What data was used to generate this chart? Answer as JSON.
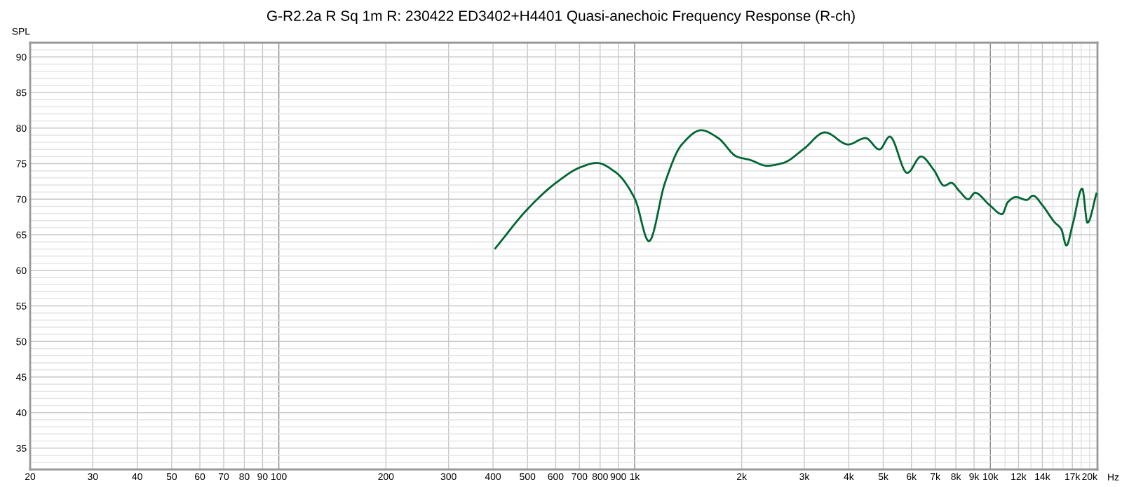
{
  "chart_data": {
    "type": "line",
    "title": "G-R2.2a R Sq 1m R: 230422 ED3402+H4401 Quasi-anechoic Frequency Response (R-ch)",
    "ylabel": "SPL",
    "xlabel": "Hz",
    "log": "x",
    "grid": true,
    "marker": "none",
    "line_style": "solid",
    "xlim": [
      20,
      20000
    ],
    "ylim": [
      32,
      92
    ],
    "xticks": [
      20,
      30,
      40,
      50,
      60,
      70,
      80,
      90,
      100,
      200,
      300,
      400,
      500,
      600,
      700,
      800,
      900,
      {
        "value": 1000,
        "label": "1k"
      },
      {
        "value": 2000,
        "label": "2k"
      },
      {
        "value": 3000,
        "label": "3k"
      },
      {
        "value": 4000,
        "label": "4k"
      },
      {
        "value": 5000,
        "label": "5k"
      },
      {
        "value": 6000,
        "label": "6k"
      },
      {
        "value": 7000,
        "label": "7k"
      },
      {
        "value": 8000,
        "label": "8k"
      },
      {
        "value": 9000,
        "label": "9k"
      },
      {
        "value": 10000,
        "label": "10k"
      },
      {
        "value": 11000,
        "label": null
      },
      {
        "value": 12000,
        "label": "12k"
      },
      {
        "value": 13000,
        "label": null
      },
      {
        "value": 14000,
        "label": "14k"
      },
      {
        "value": 15000,
        "label": null
      },
      {
        "value": 16000,
        "label": null
      },
      {
        "value": 17000,
        "label": "17k"
      },
      {
        "value": 18000,
        "label": null
      },
      {
        "value": 19000,
        "label": null
      },
      {
        "value": 20000,
        "label": "20k"
      }
    ],
    "yticks": [
      {
        "value": 33,
        "label": null
      },
      {
        "value": 34,
        "label": null
      },
      35,
      {
        "value": 36,
        "label": null
      },
      {
        "value": 37,
        "label": null
      },
      {
        "value": 38,
        "label": null
      },
      {
        "value": 39,
        "label": null
      },
      40,
      {
        "value": 41,
        "label": null
      },
      {
        "value": 42,
        "label": null
      },
      {
        "value": 43,
        "label": null
      },
      {
        "value": 44,
        "label": null
      },
      45,
      {
        "value": 46,
        "label": null
      },
      {
        "value": 47,
        "label": null
      },
      {
        "value": 48,
        "label": null
      },
      {
        "value": 49,
        "label": null
      },
      50,
      {
        "value": 51,
        "label": null
      },
      {
        "value": 52,
        "label": null
      },
      {
        "value": 53,
        "label": null
      },
      {
        "value": 54,
        "label": null
      },
      55,
      {
        "value": 56,
        "label": null
      },
      {
        "value": 57,
        "label": null
      },
      {
        "value": 58,
        "label": null
      },
      {
        "value": 59,
        "label": null
      },
      60,
      {
        "value": 61,
        "label": null
      },
      {
        "value": 62,
        "label": null
      },
      {
        "value": 63,
        "label": null
      },
      {
        "value": 64,
        "label": null
      },
      65,
      {
        "value": 66,
        "label": null
      },
      {
        "value": 67,
        "label": null
      },
      {
        "value": 68,
        "label": null
      },
      {
        "value": 69,
        "label": null
      },
      70,
      {
        "value": 71,
        "label": null
      },
      {
        "value": 72,
        "label": null
      },
      {
        "value": 73,
        "label": null
      },
      {
        "value": 74,
        "label": null
      },
      75,
      {
        "value": 76,
        "label": null
      },
      {
        "value": 77,
        "label": null
      },
      {
        "value": 78,
        "label": null
      },
      {
        "value": 79,
        "label": null
      },
      80,
      {
        "value": 81,
        "label": null
      },
      {
        "value": 82,
        "label": null
      },
      {
        "value": 83,
        "label": null
      },
      {
        "value": 84,
        "label": null
      },
      85,
      {
        "value": 86,
        "label": null
      },
      {
        "value": 87,
        "label": null
      },
      {
        "value": 88,
        "label": null
      },
      {
        "value": 89,
        "label": null
      },
      90,
      {
        "value": 91,
        "label": null
      }
    ],
    "series": [
      {
        "color": "#006633",
        "x": [
          406,
          502,
          601,
          705,
          782,
          889,
          1003,
          1097,
          1217,
          1353,
          1540,
          1718,
          1936,
          2118,
          2354,
          2616,
          2993,
          3427,
          3984,
          4457,
          4877,
          5213,
          5839,
          6387,
          6937,
          7418,
          7766,
          8196,
          8670,
          9056,
          9935,
          10790,
          11200,
          11800,
          12640,
          13180,
          14030,
          15130,
          15820,
          16360,
          17060,
          18120,
          18750,
          19870
        ],
        "values": [
          63.1,
          68.7,
          72.3,
          74.5,
          75.1,
          73.7,
          70.0,
          64.1,
          72.3,
          77.6,
          79.7,
          78.6,
          76.0,
          75.5,
          74.7,
          75.1,
          77.1,
          79.4,
          77.7,
          78.6,
          77.0,
          78.8,
          73.7,
          76.0,
          74.1,
          71.9,
          72.3,
          71.1,
          70.0,
          70.9,
          69.2,
          67.9,
          69.6,
          70.3,
          69.9,
          70.5,
          69.1,
          66.8,
          65.8,
          63.5,
          66.6,
          71.5,
          66.7,
          70.8
        ]
      }
    ]
  }
}
